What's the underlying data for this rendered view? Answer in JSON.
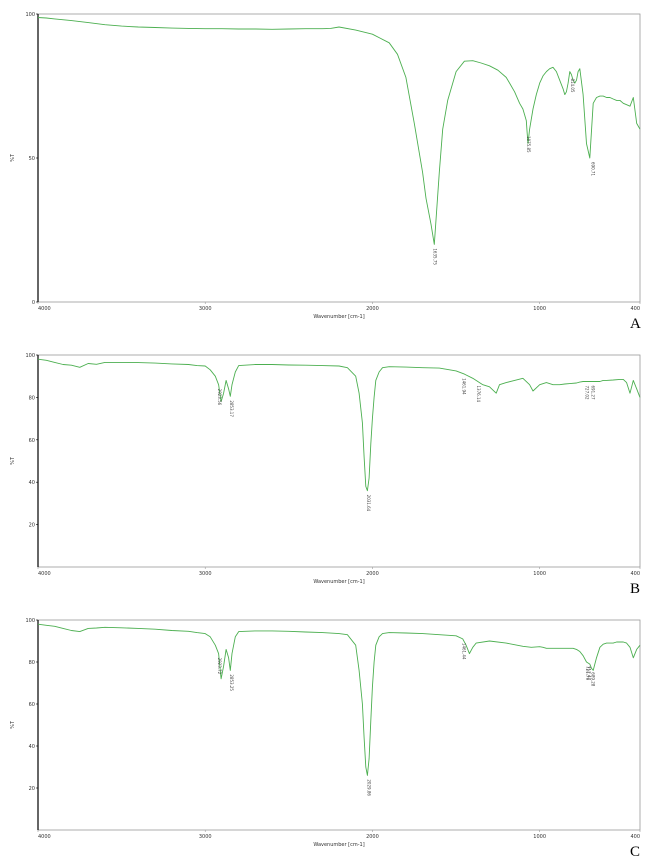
{
  "colors": {
    "spectrum": "#4caf50",
    "frame": "#9a9a9a",
    "axis": "#000000"
  },
  "chart_data": [
    {
      "panel": "A",
      "type": "line",
      "xlabel": "Wavenumber [cm-1]",
      "ylabel": "%T",
      "xlim": [
        4000,
        400
      ],
      "ylim": [
        0,
        100
      ],
      "x_ticks": [
        "4000",
        "3000",
        "2000",
        "1000",
        "400"
      ],
      "y_ticks": [
        "100",
        "50",
        "0"
      ],
      "y_tick_values": [
        100,
        50,
        0
      ],
      "grid": false,
      "series": [
        {
          "x": [
            4000,
            3950,
            3900,
            3800,
            3700,
            3600,
            3500,
            3400,
            3300,
            3200,
            3100,
            3000,
            2900,
            2800,
            2700,
            2600,
            2500,
            2400,
            2300,
            2250,
            2200,
            2100,
            2000,
            1950,
            1900,
            1850,
            1800,
            1750,
            1700,
            1680,
            1650,
            1630,
            1600,
            1580,
            1550,
            1500,
            1450,
            1400,
            1350,
            1300,
            1250,
            1200,
            1180,
            1150,
            1120,
            1100,
            1090,
            1080,
            1075,
            1070,
            1060,
            1040,
            1020,
            1000,
            980,
            960,
            940,
            920,
            900,
            880,
            860,
            850,
            840,
            830,
            820,
            810,
            800,
            790,
            780,
            770,
            760,
            740,
            720,
            700,
            680,
            660,
            640,
            620,
            600,
            580,
            560,
            540,
            520,
            500,
            480,
            460,
            440,
            420,
            400
          ],
          "y": [
            98.8,
            98.6,
            98.3,
            97.7,
            97.0,
            96.3,
            95.8,
            95.5,
            95.3,
            95.1,
            95.0,
            94.9,
            94.9,
            94.8,
            94.8,
            94.7,
            94.8,
            94.9,
            94.9,
            95.0,
            95.5,
            94.4,
            93.0,
            91.5,
            90.0,
            86.0,
            78.0,
            62.0,
            45.0,
            36.0,
            27.0,
            20.0,
            45.0,
            60.0,
            70.0,
            80.0,
            83.6,
            83.8,
            83.0,
            82.0,
            80.5,
            78.0,
            76.0,
            73.0,
            69.0,
            67.0,
            65.0,
            63.0,
            59.0,
            55.0,
            60.0,
            67.0,
            72.0,
            76.0,
            78.5,
            80.0,
            81.0,
            81.5,
            80.0,
            77.0,
            74.0,
            72.0,
            73.0,
            76.0,
            80.0,
            79.0,
            77.0,
            76.0,
            77.0,
            80.0,
            81.0,
            72.0,
            55.0,
            50.0,
            69.0,
            71.0,
            71.5,
            71.5,
            71.0,
            71.0,
            70.5,
            70.0,
            70.0,
            69.0,
            68.5,
            68.0,
            71.0,
            62.0,
            60.0
          ]
        }
      ],
      "annotations": [
        "1635.75",
        "1075.85",
        "814.05",
        "690.71"
      ]
    },
    {
      "panel": "B",
      "type": "line",
      "xlabel": "Wavenumber [cm-1]",
      "ylabel": "%T",
      "xlim": [
        4000,
        400
      ],
      "ylim": [
        0,
        100
      ],
      "x_ticks": [
        "4000",
        "3000",
        "2000",
        "1000",
        "400"
      ],
      "y_ticks": [
        "100",
        "80",
        "60",
        "40",
        "20"
      ],
      "y_tick_values": [
        100,
        80,
        60,
        40,
        20
      ],
      "grid": false,
      "series": [
        {
          "x": [
            4000,
            3950,
            3900,
            3850,
            3800,
            3750,
            3700,
            3650,
            3600,
            3500,
            3400,
            3300,
            3200,
            3100,
            3050,
            3000,
            2970,
            2940,
            2920,
            2905,
            2890,
            2875,
            2860,
            2850,
            2840,
            2820,
            2800,
            2700,
            2600,
            2500,
            2400,
            2300,
            2200,
            2150,
            2100,
            2080,
            2060,
            2050,
            2040,
            2030,
            2020,
            2010,
            2000,
            1990,
            1980,
            1960,
            1940,
            1900,
            1800,
            1700,
            1600,
            1500,
            1450,
            1400,
            1370,
            1340,
            1300,
            1260,
            1240,
            1200,
            1150,
            1100,
            1060,
            1040,
            1000,
            960,
            920,
            880,
            850,
            820,
            780,
            760,
            740,
            720,
            700,
            680,
            660,
            640,
            620,
            600,
            560,
            520,
            500,
            480,
            460,
            440,
            420,
            400
          ],
          "y": [
            98.0,
            97.5,
            96.5,
            95.5,
            95.2,
            94.2,
            96.0,
            95.6,
            96.5,
            96.5,
            96.4,
            96.2,
            95.8,
            95.5,
            95.0,
            94.8,
            93.0,
            90.0,
            86.0,
            78.0,
            82.0,
            88.0,
            84.0,
            80.5,
            86.0,
            92.0,
            95.0,
            95.5,
            95.5,
            95.3,
            95.2,
            95.0,
            94.8,
            94.0,
            90.0,
            82.0,
            68.0,
            52.0,
            38.0,
            36.0,
            42.0,
            58.0,
            70.0,
            80.0,
            88.0,
            92.0,
            94.0,
            94.5,
            94.3,
            94.0,
            93.8,
            92.5,
            91.0,
            89.0,
            87.5,
            86.0,
            85.0,
            82.0,
            86.0,
            87.0,
            88.0,
            89.0,
            86.0,
            83.0,
            86.0,
            87.0,
            86.0,
            86.0,
            86.3,
            86.5,
            86.8,
            87.2,
            87.5,
            87.5,
            87.5,
            87.5,
            87.5,
            87.5,
            88.0,
            88.0,
            88.2,
            88.5,
            88.5,
            87.0,
            82.0,
            88.0,
            84.0,
            80.0
          ]
        }
      ],
      "annotations": [
        "2923.56",
        "2853.17",
        "2031.64",
        "1461.94",
        "1376.14",
        "727.02",
        "691.27"
      ]
    },
    {
      "panel": "C",
      "type": "line",
      "xlabel": "Wavenumber [cm-1]",
      "ylabel": "%T",
      "xlim": [
        4000,
        400
      ],
      "ylim": [
        0,
        100
      ],
      "x_ticks": [
        "4000",
        "3000",
        "2000",
        "1000",
        "400"
      ],
      "y_ticks": [
        "100",
        "80",
        "60",
        "40",
        "20"
      ],
      "y_tick_values": [
        100,
        80,
        60,
        40,
        20
      ],
      "grid": false,
      "series": [
        {
          "x": [
            4000,
            3950,
            3900,
            3850,
            3800,
            3750,
            3700,
            3650,
            3600,
            3500,
            3400,
            3300,
            3200,
            3100,
            3050,
            3000,
            2970,
            2940,
            2920,
            2905,
            2890,
            2875,
            2860,
            2850,
            2840,
            2820,
            2800,
            2700,
            2600,
            2500,
            2400,
            2300,
            2200,
            2150,
            2100,
            2080,
            2060,
            2050,
            2040,
            2030,
            2020,
            2010,
            2000,
            1990,
            1980,
            1960,
            1940,
            1900,
            1800,
            1700,
            1600,
            1500,
            1460,
            1440,
            1420,
            1400,
            1380,
            1300,
            1200,
            1100,
            1050,
            1000,
            980,
            960,
            900,
            850,
            800,
            780,
            760,
            740,
            720,
            700,
            690,
            680,
            660,
            640,
            620,
            600,
            580,
            560,
            540,
            520,
            500,
            480,
            460,
            440,
            420,
            400
          ],
          "y": [
            98.0,
            97.5,
            97.0,
            96.0,
            95.0,
            94.5,
            96.0,
            96.2,
            96.5,
            96.3,
            96.0,
            95.6,
            95.0,
            94.6,
            94.0,
            93.5,
            92.0,
            88.0,
            84.0,
            72.0,
            78.0,
            86.0,
            82.0,
            76.0,
            84.0,
            92.0,
            94.5,
            94.8,
            94.8,
            94.6,
            94.3,
            94.0,
            93.5,
            93.0,
            88.0,
            76.0,
            60.0,
            44.0,
            30.0,
            26.0,
            34.0,
            52.0,
            68.0,
            80.0,
            88.0,
            92.0,
            93.5,
            94.0,
            93.8,
            93.5,
            93.0,
            92.5,
            91.0,
            88.0,
            84.0,
            87.0,
            89.0,
            90.0,
            89.0,
            87.5,
            87.0,
            87.3,
            87.0,
            86.5,
            86.5,
            86.5,
            86.5,
            86.0,
            85.0,
            83.0,
            80.0,
            79.0,
            77.0,
            76.0,
            82.0,
            87.0,
            88.5,
            89.0,
            89.0,
            89.0,
            89.5,
            89.5,
            89.5,
            89.0,
            87.0,
            82.0,
            86.0,
            88.0
          ]
        }
      ],
      "annotations": [
        "2923.72",
        "2853.25",
        "2029.86",
        "1461.44",
        "721.79",
        "712.47",
        "689.28"
      ]
    }
  ]
}
